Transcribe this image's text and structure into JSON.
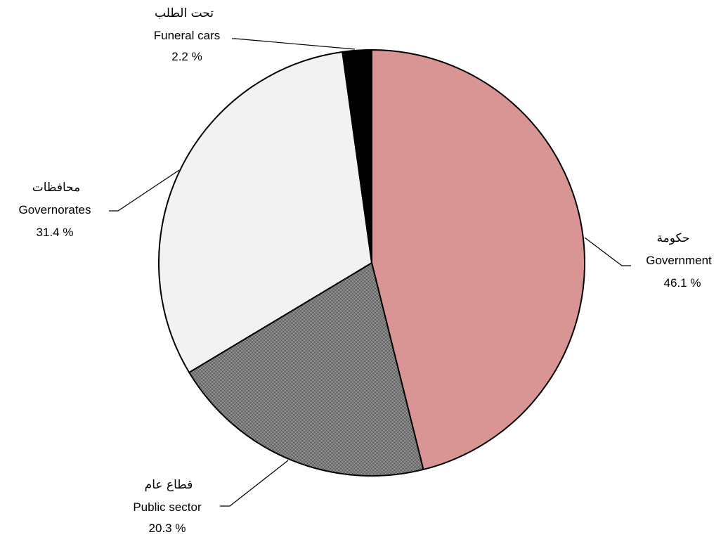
{
  "chart_data": {
    "type": "pie",
    "title": "",
    "start": "top",
    "direction": "clockwise",
    "slices": [
      {
        "name_ar": "حكومة",
        "name_en": "Government",
        "value": 46.1,
        "label": "46.1 %",
        "color": "#d99594",
        "pattern": "solid"
      },
      {
        "name_ar": "قطاع عام",
        "name_en": "Public sector",
        "value": 20.3,
        "label": "20.3 %",
        "color": "#7f7f7f",
        "pattern": "checker"
      },
      {
        "name_ar": "محافظات",
        "name_en": "Governorates",
        "value": 31.4,
        "label": "31.4 %",
        "color": "#f2f2f2",
        "pattern": "solid"
      },
      {
        "name_ar": "تحت الطلب",
        "name_en": "Funeral cars",
        "value": 2.2,
        "label": "2.2 %",
        "color": "#000000",
        "pattern": "solid"
      }
    ]
  }
}
